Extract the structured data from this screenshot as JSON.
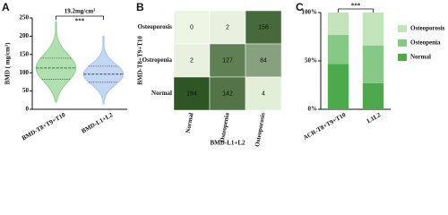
{
  "chart_data": [
    {
      "type": "violin",
      "panel": "A",
      "ylabel": "BMD ( mg/cm³)",
      "categories": [
        "BMD-T8+T9+T10",
        "BMD-L1+L2"
      ],
      "series": [
        {
          "color": "#8fd18f",
          "min": 20,
          "q1": 82,
          "median": 113,
          "q3": 140,
          "max": 240
        },
        {
          "color": "#a9c4ee",
          "min": 15,
          "q1": 74,
          "median": 96,
          "q3": 118,
          "max": 200
        }
      ],
      "ylim": [
        0,
        250
      ],
      "yticks": [
        0,
        50,
        100,
        150,
        200,
        250
      ],
      "annotation": "19.2mg/cm³",
      "significance": "***"
    },
    {
      "type": "heatmap",
      "panel": "B",
      "ylabel": "BMD-T8+T9+T10",
      "xlabel": "BMD-L1+L2",
      "rows": [
        "Osteoporosis",
        "Ostropenia",
        "Normal"
      ],
      "columns": [
        "Normal",
        "Osteopenia",
        "Osteoporosis"
      ],
      "values": [
        [
          0,
          2,
          156
        ],
        [
          2,
          127,
          84
        ],
        [
          184,
          142,
          4
        ]
      ]
    },
    {
      "type": "stacked-bar",
      "panel": "C",
      "categories": [
        "ACR-T8+T9+T10",
        "L1L2"
      ],
      "series": [
        {
          "name": "Normal",
          "color": "#4caa4c",
          "values": [
            47,
            27
          ]
        },
        {
          "name": "Osteopenia",
          "color": "#86c986",
          "values": [
            30,
            39
          ]
        },
        {
          "name": "Osteoporosis",
          "color": "#c2e4bb",
          "values": [
            23,
            34
          ]
        }
      ],
      "ylim": [
        0,
        100
      ],
      "yticks": [
        {
          "value": 0,
          "label": "0%"
        },
        {
          "value": 50,
          "label": "50%"
        },
        {
          "value": 100,
          "label": "100%"
        }
      ],
      "significance": "***"
    }
  ]
}
